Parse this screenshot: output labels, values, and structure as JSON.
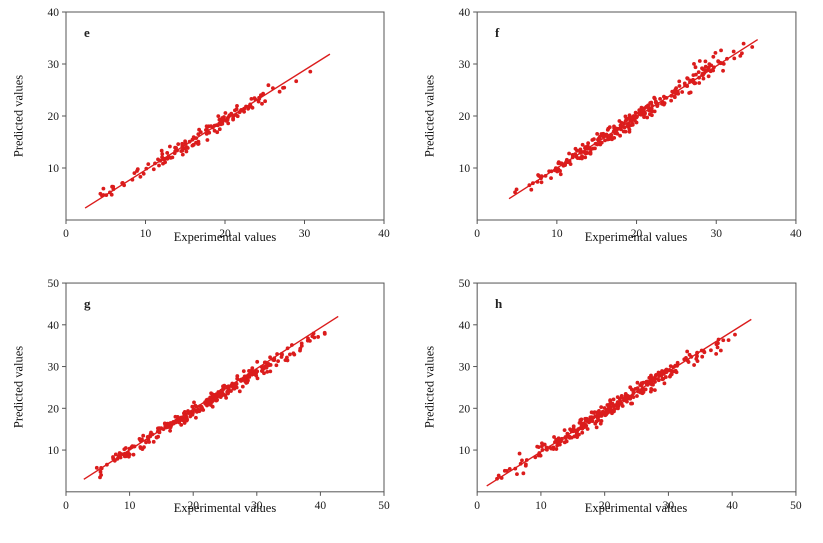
{
  "figure": {
    "background_color": "#ffffff",
    "panel_labels": [
      "e",
      "f",
      "g",
      "h"
    ]
  },
  "chart_data": [
    {
      "id": "e",
      "type": "scatter",
      "panel_label": "e",
      "xlabel": "Experimental values",
      "ylabel": "Predicted values",
      "xlim": [
        0,
        40
      ],
      "ylim": [
        0,
        40
      ],
      "xticks": [
        0,
        10,
        20,
        30,
        40
      ],
      "yticks": [
        10,
        20,
        30,
        40
      ],
      "grid": false,
      "legend": false,
      "marker_color": "#db1c1c",
      "line_color": "#db1c1c",
      "frame_color": "#555555",
      "fit_line": {
        "x1": 2.4,
        "y1": 2.3,
        "x2": 33.2,
        "y2": 31.9
      },
      "scatter": {
        "n": 150,
        "x_min": 2.5,
        "x_max": 32.2,
        "slope": 0.955,
        "intercept": 0.15,
        "noise_sd": 0.7,
        "seed": 11
      }
    },
    {
      "id": "f",
      "type": "scatter",
      "panel_label": "f",
      "xlabel": "Experimental values",
      "ylabel": "Predicted values",
      "xlim": [
        0,
        40
      ],
      "ylim": [
        0,
        40
      ],
      "xticks": [
        0,
        10,
        20,
        30,
        40
      ],
      "yticks": [
        10,
        20,
        30,
        40
      ],
      "grid": false,
      "legend": false,
      "marker_color": "#db1c1c",
      "line_color": "#db1c1c",
      "frame_color": "#555555",
      "fit_line": {
        "x1": 4.0,
        "y1": 4.1,
        "x2": 35.2,
        "y2": 34.7
      },
      "scatter": {
        "n": 280,
        "x_min": 4.0,
        "x_max": 35.0,
        "slope": 0.97,
        "intercept": 0.3,
        "noise_sd": 0.75,
        "seed": 22,
        "bias": {
          "x_from": 25,
          "x_to": 32,
          "dy": 2.0,
          "prob": 0.35
        }
      }
    },
    {
      "id": "g",
      "type": "scatter",
      "panel_label": "g",
      "xlabel": "Experimental values",
      "ylabel": "Predicted values",
      "xlim": [
        0,
        50
      ],
      "ylim": [
        0,
        50
      ],
      "xticks": [
        0,
        10,
        20,
        30,
        40,
        50
      ],
      "yticks": [
        10,
        20,
        30,
        40,
        50
      ],
      "grid": false,
      "legend": false,
      "marker_color": "#db1c1c",
      "line_color": "#db1c1c",
      "frame_color": "#555555",
      "fit_line": {
        "x1": 2.8,
        "y1": 3.0,
        "x2": 42.8,
        "y2": 42.0
      },
      "scatter": {
        "n": 300,
        "x_min": 3.0,
        "x_max": 42.3,
        "slope": 0.945,
        "intercept": 0.4,
        "noise_sd": 0.8,
        "seed": 33,
        "bias": {
          "x_from": 33,
          "x_to": 43,
          "dy": -0.8,
          "prob": 0.6
        }
      }
    },
    {
      "id": "h",
      "type": "scatter",
      "panel_label": "h",
      "xlabel": "Experimental values",
      "ylabel": "Predicted values",
      "xlim": [
        0,
        50
      ],
      "ylim": [
        0,
        50
      ],
      "xticks": [
        0,
        10,
        20,
        30,
        40,
        50
      ],
      "yticks": [
        10,
        20,
        30,
        40,
        50
      ],
      "grid": false,
      "legend": false,
      "marker_color": "#db1c1c",
      "line_color": "#db1c1c",
      "frame_color": "#555555",
      "fit_line": {
        "x1": 1.5,
        "y1": 1.4,
        "x2": 43.0,
        "y2": 41.3
      },
      "scatter": {
        "n": 300,
        "x_min": 1.5,
        "x_max": 41.5,
        "slope": 0.95,
        "intercept": 0.2,
        "noise_sd": 0.95,
        "seed": 44,
        "bias": {
          "x_from": 34,
          "x_to": 42,
          "dy": -1.2,
          "prob": 0.6
        }
      }
    }
  ]
}
